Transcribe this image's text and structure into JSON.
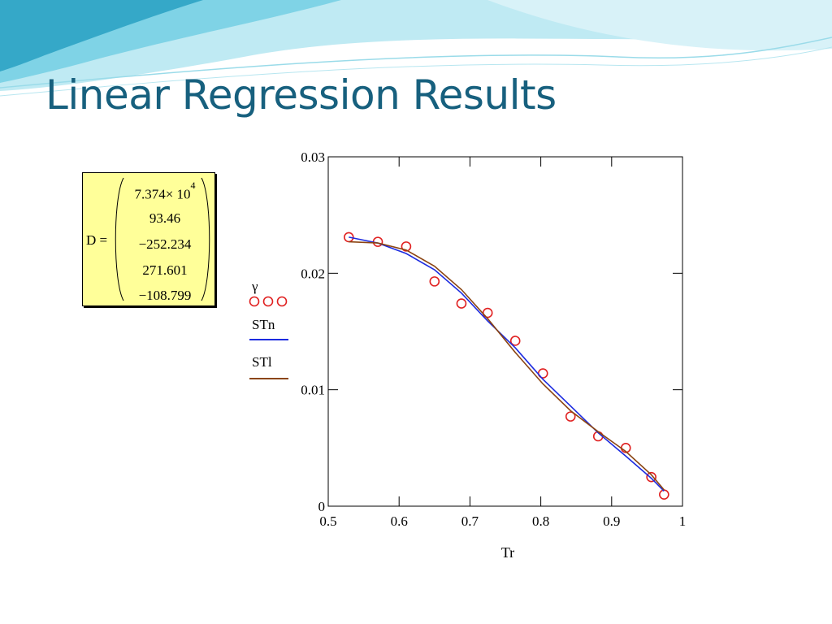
{
  "slide": {
    "title": "Linear Regression Results",
    "colors": {
      "title": "#17607e",
      "wave_light": "#bfeaf3",
      "wave_mid": "#7fd3e6",
      "wave_dark": "#35a8c8"
    }
  },
  "matrix": {
    "label": "D =",
    "values": [
      {
        "mantissa": "7.374× 10",
        "exponent": "4"
      },
      {
        "mantissa": "93.46"
      },
      {
        "mantissa": "−252.234"
      },
      {
        "mantissa": "271.601"
      },
      {
        "mantissa": "−108.799"
      }
    ],
    "background": "#ffff99"
  },
  "chart_data": {
    "type": "line",
    "xlabel": "Tr",
    "ylabel": "",
    "xlim": [
      0.5,
      1
    ],
    "ylim": [
      0,
      0.03
    ],
    "xticks": [
      0.5,
      0.6,
      0.7,
      0.8,
      0.9,
      1
    ],
    "xtick_labels": [
      "0.5",
      "0.6",
      "0.7",
      "0.8",
      "0.9",
      "1"
    ],
    "yticks": [
      0,
      0.01,
      0.02,
      0.03
    ],
    "ytick_labels": [
      "0",
      "0.01",
      "0.02",
      "0.03"
    ],
    "grid": false,
    "legend_position": "left",
    "series": [
      {
        "name": "γ",
        "style": "markers",
        "color": "#e02020",
        "x": [
          0.529,
          0.57,
          0.61,
          0.65,
          0.688,
          0.725,
          0.764,
          0.803,
          0.842,
          0.881,
          0.92,
          0.956,
          0.974
        ],
        "y": [
          0.0231,
          0.0227,
          0.0223,
          0.0193,
          0.0174,
          0.0166,
          0.0142,
          0.0114,
          0.0077,
          0.006,
          0.005,
          0.0025,
          0.001
        ]
      },
      {
        "name": "STn",
        "style": "line",
        "color": "#1c2be0",
        "x": [
          0.529,
          0.57,
          0.61,
          0.65,
          0.688,
          0.725,
          0.764,
          0.803,
          0.842,
          0.881,
          0.92,
          0.956,
          0.974
        ],
        "y": [
          0.0231,
          0.0226,
          0.0217,
          0.0203,
          0.0183,
          0.0159,
          0.0136,
          0.0109,
          0.0086,
          0.0063,
          0.0043,
          0.0024,
          0.0013
        ]
      },
      {
        "name": "STl",
        "style": "line",
        "color": "#8b4513",
        "x": [
          0.529,
          0.57,
          0.61,
          0.65,
          0.688,
          0.725,
          0.764,
          0.803,
          0.842,
          0.881,
          0.92,
          0.956,
          0.974
        ],
        "y": [
          0.0227,
          0.0226,
          0.022,
          0.0206,
          0.0186,
          0.0161,
          0.0132,
          0.0105,
          0.0082,
          0.0064,
          0.0047,
          0.0027,
          0.0014
        ]
      }
    ]
  }
}
